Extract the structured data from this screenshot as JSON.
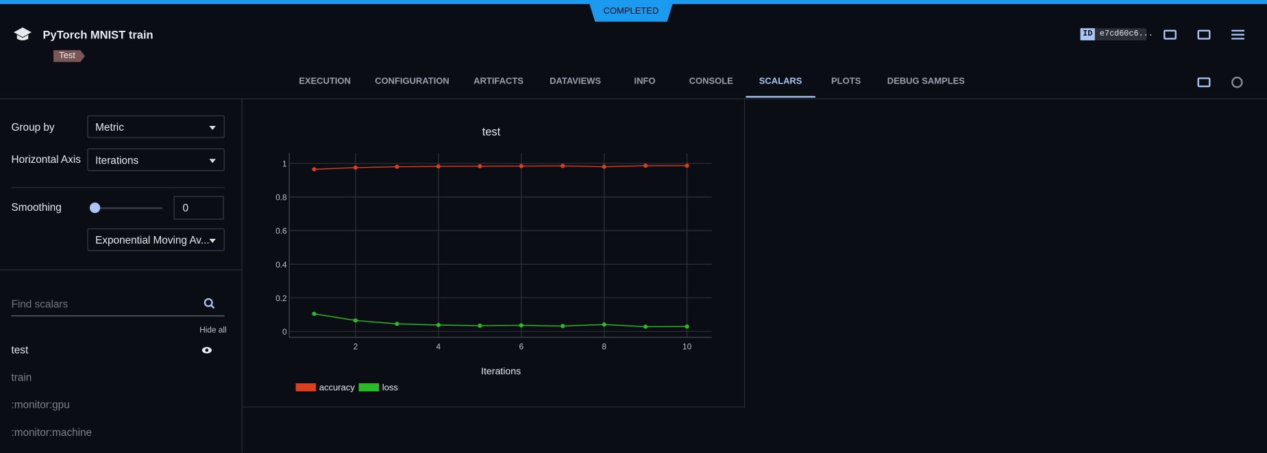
{
  "header": {
    "status": "COMPLETED",
    "title": "PyTorch MNIST train",
    "tag": "Test",
    "id": "e7cd60c6..."
  },
  "tabs": [
    "EXECUTION",
    "CONFIGURATION",
    "ARTIFACTS",
    "DATAVIEWS",
    "INFO",
    "CONSOLE",
    "SCALARS",
    "PLOTS",
    "DEBUG SAMPLES"
  ],
  "sidebar": {
    "group_by_label": "Group by",
    "group_by_value": "Metric",
    "horizontal_axis_label": "Horizontal Axis",
    "horizontal_axis_value": "Iterations",
    "smoothing_label": "Smoothing",
    "smoothing_value": 0,
    "smoothing_method": "Exponential Moving Av...",
    "search_placeholder": "Find scalars",
    "hide_all": "Hide all",
    "scalars": [
      "test",
      "train",
      ":monitor:gpu",
      ":monitor:machine"
    ]
  },
  "chart_data": {
    "type": "line",
    "title": "test",
    "x_label": "Iterations",
    "x": [
      1,
      2,
      3,
      4,
      5,
      6,
      7,
      8,
      9,
      10
    ],
    "series": [
      {
        "name": "accuracy",
        "color": "#d9411e",
        "values": [
          0.965,
          0.975,
          0.98,
          0.982,
          0.983,
          0.984,
          0.985,
          0.98,
          0.986,
          0.986
        ]
      },
      {
        "name": "loss",
        "color": "#2bbd28",
        "values": [
          0.105,
          0.065,
          0.045,
          0.038,
          0.034,
          0.036,
          0.032,
          0.041,
          0.028,
          0.029
        ]
      }
    ],
    "xlim": [
      0.4,
      10.6
    ],
    "ylim": [
      -0.035,
      1.06
    ],
    "xticks": [
      2,
      4,
      6,
      8,
      10
    ],
    "yticks": [
      0,
      0.2,
      0.4,
      0.6,
      0.8,
      1
    ],
    "grid": true
  }
}
